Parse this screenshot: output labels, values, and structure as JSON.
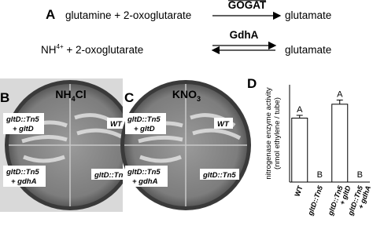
{
  "panels": {
    "a": {
      "label": "A",
      "reaction_1": {
        "substrates": "glutamine + 2-oxoglutarate",
        "enzyme": "GOGAT",
        "product": "glutamate"
      },
      "reaction_2": {
        "substrate_parts": [
          "NH",
          "4",
          "+",
          " + 2-oxoglutarate"
        ],
        "enzyme": "GdhA",
        "product": "glutamate"
      }
    },
    "b": {
      "label": "B",
      "title_parts": [
        "NH",
        "4",
        "Cl"
      ],
      "strains": {
        "top_left": [
          "gltD::Tn5",
          "+ gltD"
        ],
        "top_right": "WT",
        "bottom_left": [
          "gltD::Tn5",
          "+ gdhA"
        ],
        "bottom_right": "gltD::Tn5"
      }
    },
    "c": {
      "label": "C",
      "title_parts": [
        "KNO",
        "3"
      ],
      "strains": {
        "top_left": [
          "gltD::Tn5",
          "+ gltD"
        ],
        "top_right": "WT",
        "bottom_left": [
          "gltD::Tn5",
          "+ gdhA"
        ],
        "bottom_right": "gltD::Tn5"
      }
    },
    "d": {
      "label": "D"
    }
  },
  "chart_data": {
    "type": "bar",
    "ylabel": [
      "nitrogenase enzyme activity",
      "(nmol ethylene / tube)"
    ],
    "categories": [
      [
        "WT"
      ],
      [
        "gltD::Tn5"
      ],
      [
        "gltD::Tn5",
        "+ gltD"
      ],
      [
        "gltD::Tn5",
        "+ gdhA"
      ]
    ],
    "values": [
      2.3,
      0,
      2.8,
      0
    ],
    "errors": [
      0.1,
      0,
      0.15,
      0
    ],
    "annotations": [
      "A",
      "B",
      "A",
      "B"
    ],
    "color": "#ffffff",
    "ylim": [
      0,
      3.5
    ]
  }
}
